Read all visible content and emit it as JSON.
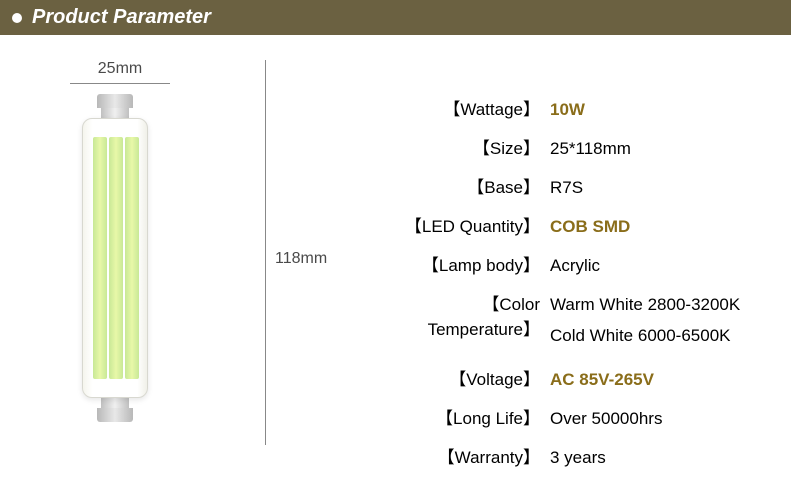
{
  "header": {
    "title": "Product Parameter"
  },
  "dimensions": {
    "width_label": "25mm",
    "height_label": "118mm"
  },
  "specs": [
    {
      "label": "Wattage",
      "value": "10W",
      "highlight": true
    },
    {
      "label": "Size",
      "value": "25*118mm",
      "highlight": false
    },
    {
      "label": "Base",
      "value": "R7S",
      "highlight": false
    },
    {
      "label": "LED Quantity",
      "value": "COB SMD",
      "highlight": true
    },
    {
      "label": "Lamp body",
      "value": "Acrylic",
      "highlight": false
    },
    {
      "label": "Color Temperature",
      "value": "Warm White 2800-3200K",
      "value2": "Cold White 6000-6500K",
      "highlight": false
    },
    {
      "label": "Voltage",
      "value": "AC 85V-265V",
      "highlight": true
    },
    {
      "label": "Long Life",
      "value": "Over 50000hrs",
      "highlight": false
    },
    {
      "label": "Warranty",
      "value": "3 years",
      "highlight": false
    }
  ],
  "colors": {
    "header_bg": "#6b6141",
    "highlight_text": "#8a6d1a",
    "led_color": "#d8f090"
  }
}
